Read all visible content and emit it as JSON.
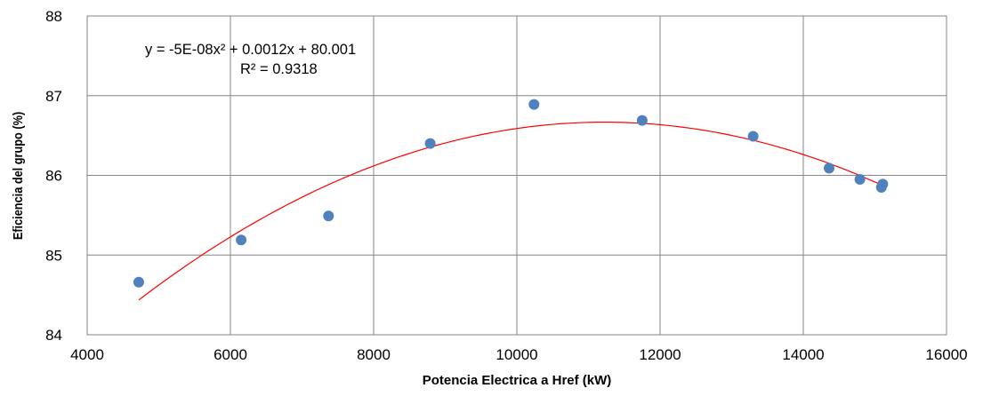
{
  "chart_data": {
    "type": "scatter",
    "xlabel": "Potencia Electrica a Href (kW)",
    "ylabel": "Eficiencia del grupo (%)",
    "xlim": [
      4000,
      16000
    ],
    "ylim": [
      84,
      88
    ],
    "xticks": [
      4000,
      6000,
      8000,
      10000,
      12000,
      14000,
      16000
    ],
    "yticks": [
      84,
      85,
      86,
      87,
      88
    ],
    "x_tick_labels": [
      "4000",
      "6000",
      "8000",
      "10000",
      "12000",
      "14000",
      "16000"
    ],
    "y_tick_labels": [
      "84",
      "85",
      "86",
      "87",
      "88"
    ],
    "grid": true,
    "legend": "none",
    "series": [
      {
        "points": [
          {
            "x": 4720,
            "y": 84.66
          },
          {
            "x": 6150,
            "y": 85.19
          },
          {
            "x": 7370,
            "y": 85.49
          },
          {
            "x": 8790,
            "y": 86.4
          },
          {
            "x": 10240,
            "y": 86.89
          },
          {
            "x": 11750,
            "y": 86.69
          },
          {
            "x": 13300,
            "y": 86.49
          },
          {
            "x": 14360,
            "y": 86.09
          },
          {
            "x": 14790,
            "y": 85.95
          },
          {
            "x": 15090,
            "y": 85.85
          },
          {
            "x": 15110,
            "y": 85.89
          }
        ],
        "color": "#4f81bd"
      }
    ],
    "trendline": {
      "type": "polynomial",
      "order": 2,
      "x_range": [
        4720,
        15110
      ],
      "color": "#ff0000"
    },
    "annotations": {
      "equation": "y = -5E-08x² + 0.0012x + 80.001",
      "r_squared": "R² = 0.9318"
    }
  }
}
